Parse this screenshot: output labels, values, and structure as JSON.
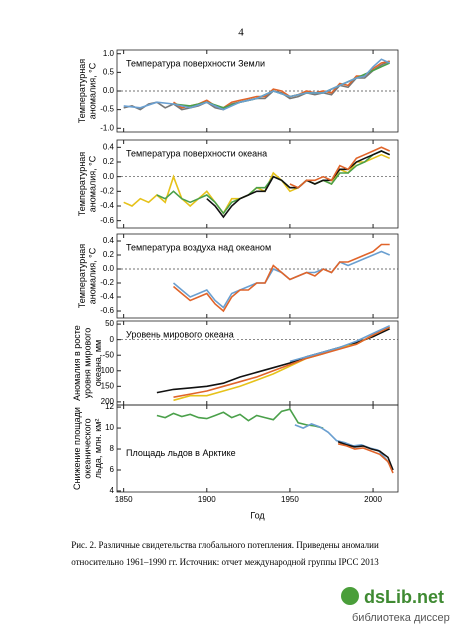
{
  "page_number": "4",
  "x_axis": {
    "xlim": [
      1846,
      2015
    ],
    "xticks": [
      1850,
      1900,
      1950,
      2000
    ],
    "xlabel": "Год"
  },
  "chart_data": [
    {
      "type": "line",
      "title": "Температура поверхности Земли",
      "ylabel": [
        "Температурная",
        "аномалия, °C"
      ],
      "ylim": [
        -1.1,
        1.1
      ],
      "yticks": [
        {
          "value": 1,
          "label": "1.0"
        },
        {
          "value": 0.5,
          "label": "0.5"
        },
        {
          "value": 0,
          "label": "0.0"
        },
        {
          "value": -0.5,
          "label": "-0.5"
        },
        {
          "value": -1,
          "label": "-1.0"
        }
      ],
      "zero_line": true,
      "series": [
        {
          "color": "#777777",
          "x": [
            1850,
            1855,
            1860,
            1865,
            1870,
            1875,
            1880,
            1885,
            1890,
            1895,
            1900,
            1905,
            1910,
            1915,
            1920,
            1925,
            1930,
            1935,
            1940,
            1945,
            1950,
            1955,
            1960,
            1965,
            1970,
            1975,
            1980,
            1985,
            1990,
            1995,
            2000,
            2005,
            2010
          ],
          "values": [
            -0.45,
            -0.4,
            -0.5,
            -0.35,
            -0.3,
            -0.45,
            -0.35,
            -0.5,
            -0.45,
            -0.4,
            -0.3,
            -0.45,
            -0.5,
            -0.35,
            -0.3,
            -0.25,
            -0.2,
            -0.2,
            0.0,
            -0.05,
            -0.2,
            -0.15,
            -0.05,
            -0.1,
            -0.05,
            -0.1,
            0.15,
            0.1,
            0.35,
            0.35,
            0.55,
            0.7,
            0.8
          ]
        },
        {
          "color": "#e0642a",
          "x": [
            1880,
            1885,
            1890,
            1895,
            1900,
            1905,
            1910,
            1915,
            1920,
            1925,
            1930,
            1935,
            1940,
            1945,
            1950,
            1955,
            1960,
            1965,
            1970,
            1975,
            1980,
            1985,
            1990,
            1995,
            2000,
            2005,
            2010
          ],
          "values": [
            -0.3,
            -0.45,
            -0.4,
            -0.35,
            -0.25,
            -0.4,
            -0.45,
            -0.3,
            -0.25,
            -0.2,
            -0.15,
            -0.15,
            0.05,
            0.0,
            -0.15,
            -0.1,
            0.0,
            -0.05,
            0.0,
            -0.05,
            0.2,
            0.15,
            0.4,
            0.4,
            0.6,
            0.75,
            0.8
          ]
        },
        {
          "color": "#4aa04a",
          "x": [
            1880,
            1890,
            1900,
            1910,
            1920,
            1930,
            1940,
            1950,
            1960,
            1970,
            1980,
            1990,
            2000,
            2010
          ],
          "values": [
            -0.35,
            -0.4,
            -0.3,
            -0.45,
            -0.3,
            -0.2,
            0.0,
            -0.15,
            -0.05,
            -0.05,
            0.15,
            0.35,
            0.55,
            0.75
          ]
        },
        {
          "color": "#6a9fd0",
          "x": [
            1850,
            1860,
            1870,
            1880,
            1890,
            1900,
            1910,
            1920,
            1930,
            1940,
            1950,
            1960,
            1970,
            1980,
            1990,
            1995,
            2000,
            2005,
            2010
          ],
          "values": [
            -0.4,
            -0.45,
            -0.3,
            -0.35,
            -0.45,
            -0.3,
            -0.5,
            -0.3,
            -0.2,
            0.0,
            -0.15,
            -0.05,
            -0.05,
            0.15,
            0.35,
            0.4,
            0.65,
            0.85,
            0.75
          ]
        }
      ]
    },
    {
      "type": "line",
      "title": "Температура поверхности океана",
      "ylabel": [
        "Температурная",
        "аномалия, °C"
      ],
      "ylim": [
        -0.7,
        0.5
      ],
      "yticks": [
        {
          "value": 0.4,
          "label": "0.4"
        },
        {
          "value": 0.2,
          "label": "0.2"
        },
        {
          "value": 0,
          "label": "0.0"
        },
        {
          "value": -0.2,
          "label": "-0.2"
        },
        {
          "value": -0.4,
          "label": "-0.4"
        },
        {
          "value": -0.6,
          "label": "-0.6"
        }
      ],
      "zero_line": true,
      "series": [
        {
          "color": "#e6c21a",
          "x": [
            1850,
            1855,
            1860,
            1865,
            1870,
            1875,
            1880,
            1885,
            1890,
            1895,
            1900,
            1905,
            1910,
            1915,
            1920,
            1925,
            1930,
            1935,
            1940,
            1945,
            1950,
            1955,
            1960,
            1965,
            1970,
            1975,
            1980,
            1985,
            1990,
            1995,
            2000,
            2005,
            2010
          ],
          "values": [
            -0.35,
            -0.4,
            -0.3,
            -0.35,
            -0.25,
            -0.35,
            0.0,
            -0.3,
            -0.4,
            -0.3,
            -0.2,
            -0.35,
            -0.5,
            -0.3,
            -0.3,
            -0.25,
            -0.15,
            -0.2,
            0.05,
            -0.05,
            -0.2,
            -0.15,
            -0.05,
            -0.1,
            -0.05,
            -0.1,
            0.1,
            0.05,
            0.2,
            0.2,
            0.25,
            0.3,
            0.25
          ]
        },
        {
          "color": "#4aa04a",
          "x": [
            1870,
            1875,
            1880,
            1885,
            1890,
            1895,
            1900,
            1905,
            1910,
            1915,
            1920,
            1925,
            1930,
            1935,
            1940,
            1945,
            1950,
            1955,
            1960,
            1965,
            1970,
            1975,
            1980,
            1985,
            1990,
            1995,
            2000,
            2005,
            2010
          ],
          "values": [
            -0.25,
            -0.3,
            -0.2,
            -0.3,
            -0.35,
            -0.3,
            -0.25,
            -0.35,
            -0.5,
            -0.35,
            -0.3,
            -0.25,
            -0.15,
            -0.15,
            0.0,
            -0.05,
            -0.15,
            -0.15,
            -0.05,
            -0.1,
            -0.05,
            -0.1,
            0.05,
            0.05,
            0.15,
            0.2,
            0.3,
            0.35,
            0.3
          ]
        },
        {
          "color": "#111111",
          "x": [
            1900,
            1905,
            1910,
            1915,
            1920,
            1925,
            1930,
            1935,
            1940,
            1945,
            1950,
            1955,
            1960,
            1965,
            1970,
            1975,
            1980,
            1985,
            1990,
            1995,
            2000,
            2005,
            2010
          ],
          "values": [
            -0.3,
            -0.4,
            -0.55,
            -0.4,
            -0.3,
            -0.25,
            -0.2,
            -0.2,
            0.0,
            -0.05,
            -0.15,
            -0.15,
            -0.05,
            -0.1,
            -0.05,
            -0.05,
            0.1,
            0.1,
            0.2,
            0.25,
            0.3,
            0.35,
            0.3
          ]
        },
        {
          "color": "#e0642a",
          "x": [
            1950,
            1955,
            1960,
            1965,
            1970,
            1975,
            1980,
            1985,
            1990,
            1995,
            2000,
            2005,
            2010
          ],
          "values": [
            -0.1,
            -0.15,
            -0.05,
            -0.05,
            0.0,
            -0.05,
            0.15,
            0.1,
            0.25,
            0.3,
            0.35,
            0.4,
            0.35
          ]
        }
      ]
    },
    {
      "type": "line",
      "title": "Температура воздуха над океаном",
      "ylabel": [
        "Температурная",
        "аномалия, °C"
      ],
      "ylim": [
        -0.7,
        0.5
      ],
      "yticks": [
        {
          "value": 0.4,
          "label": "0.4"
        },
        {
          "value": 0.2,
          "label": "0.2"
        },
        {
          "value": 0,
          "label": "0.0"
        },
        {
          "value": -0.2,
          "label": "-0.2"
        },
        {
          "value": -0.4,
          "label": "-0.4"
        },
        {
          "value": -0.6,
          "label": "-0.6"
        }
      ],
      "zero_line": true,
      "series": [
        {
          "color": "#6a9fd0",
          "x": [
            1880,
            1885,
            1890,
            1895,
            1900,
            1905,
            1910,
            1915,
            1920,
            1925,
            1930,
            1935,
            1940,
            1945,
            1950,
            1955,
            1960,
            1965,
            1970,
            1975,
            1980,
            1985,
            1990,
            1995,
            2000,
            2005,
            2010
          ],
          "values": [
            -0.2,
            -0.3,
            -0.4,
            -0.35,
            -0.3,
            -0.45,
            -0.55,
            -0.35,
            -0.3,
            -0.25,
            -0.2,
            -0.2,
            0.0,
            -0.05,
            -0.15,
            -0.1,
            -0.05,
            -0.05,
            0.0,
            -0.05,
            0.1,
            0.05,
            0.1,
            0.15,
            0.2,
            0.25,
            0.2
          ]
        },
        {
          "color": "#e0642a",
          "x": [
            1880,
            1885,
            1890,
            1895,
            1900,
            1905,
            1910,
            1915,
            1920,
            1925,
            1930,
            1935,
            1940,
            1945,
            1950,
            1955,
            1960,
            1965,
            1970,
            1975,
            1980,
            1985,
            1990,
            1995,
            2000,
            2005,
            2010
          ],
          "values": [
            -0.25,
            -0.35,
            -0.45,
            -0.4,
            -0.35,
            -0.5,
            -0.6,
            -0.4,
            -0.3,
            -0.3,
            -0.2,
            -0.2,
            0.05,
            -0.05,
            -0.15,
            -0.1,
            -0.05,
            -0.1,
            0.0,
            -0.05,
            0.1,
            0.1,
            0.15,
            0.2,
            0.25,
            0.35,
            0.35
          ]
        }
      ]
    },
    {
      "type": "line",
      "title": "Уровень мирового океана",
      "ylabel": [
        "Аномалия в росте",
        "уровня мирового",
        "океана, мм"
      ],
      "ylim": [
        -210,
        60
      ],
      "yticks": [
        50,
        0,
        -50,
        {
          "value": -100,
          "label": "100"
        },
        {
          "value": -150,
          "label": "150"
        },
        {
          "value": -200,
          "label": "200"
        }
      ],
      "zero_line": true,
      "series": [
        {
          "color": "#111111",
          "x": [
            1870,
            1880,
            1890,
            1900,
            1910,
            1920,
            1930,
            1940,
            1950,
            1960,
            1970,
            1980,
            1990,
            2000,
            2010
          ],
          "values": [
            -170,
            -160,
            -155,
            -150,
            -140,
            -120,
            -105,
            -90,
            -75,
            -55,
            -40,
            -25,
            -10,
            10,
            35
          ]
        },
        {
          "color": "#e6c21a",
          "x": [
            1880,
            1890,
            1900,
            1910,
            1920,
            1930,
            1940,
            1950,
            1960,
            1970,
            1980,
            1990,
            2000,
            2010
          ],
          "values": [
            -195,
            -180,
            -180,
            -165,
            -150,
            -130,
            -110,
            -85,
            -60,
            -45,
            -25,
            -15,
            15,
            40
          ]
        },
        {
          "color": "#e0642a",
          "x": [
            1880,
            1890,
            1900,
            1910,
            1920,
            1930,
            1940,
            1950,
            1960,
            1970,
            1980,
            1990,
            2000,
            2010
          ],
          "values": [
            -185,
            -175,
            -165,
            -150,
            -135,
            -120,
            -100,
            -80,
            -60,
            -45,
            -30,
            -15,
            15,
            40
          ]
        },
        {
          "color": "#6a9fd0",
          "x": [
            1950,
            1960,
            1970,
            1980,
            1990,
            2000,
            2010
          ],
          "values": [
            -70,
            -55,
            -40,
            -25,
            -5,
            20,
            45
          ]
        }
      ]
    },
    {
      "type": "line",
      "title": "Площадь льдов в Арктике",
      "ylabel": [
        "Снижение площади",
        "океанического",
        "льда, млн. км²"
      ],
      "ylim": [
        3.9,
        12.2
      ],
      "yticks": [
        12,
        10,
        8,
        6,
        4
      ],
      "zero_line": false,
      "series": [
        {
          "color": "#4aa04a",
          "x": [
            1870,
            1875,
            1880,
            1885,
            1890,
            1895,
            1900,
            1905,
            1910,
            1915,
            1920,
            1925,
            1930,
            1935,
            1940,
            1945,
            1950,
            1955,
            1960,
            1965,
            1970
          ],
          "values": [
            11.2,
            11.0,
            11.4,
            11.1,
            11.3,
            11.0,
            10.9,
            11.2,
            11.5,
            11.0,
            11.3,
            10.7,
            11.2,
            11.0,
            10.8,
            11.6,
            11.8,
            10.5,
            10.3,
            10.2,
            10.0
          ]
        },
        {
          "color": "#6a9fd0",
          "x": [
            1953,
            1958,
            1963,
            1968,
            1973,
            1978,
            1983,
            1988,
            1993,
            1998,
            2003,
            2008,
            2012
          ],
          "values": [
            10.3,
            10.0,
            10.4,
            10.1,
            9.6,
            8.8,
            8.6,
            8.3,
            8.4,
            8.1,
            7.9,
            7.0,
            6.0
          ]
        },
        {
          "color": "#111111",
          "x": [
            1979,
            1984,
            1989,
            1994,
            1999,
            2004,
            2009,
            2012
          ],
          "values": [
            8.7,
            8.4,
            8.2,
            8.3,
            8.0,
            7.8,
            7.2,
            6.0
          ]
        },
        {
          "color": "#e0642a",
          "x": [
            1979,
            1984,
            1989,
            1994,
            1999,
            2004,
            2009,
            2012
          ],
          "values": [
            8.5,
            8.3,
            8.0,
            8.1,
            7.8,
            7.5,
            6.8,
            5.7
          ]
        }
      ]
    }
  ],
  "caption": [
    "Рис. 2. Различные свидетельства глобального потепления. Приведены аномалии",
    "относительно 1961–1990 гг. Источник: отчет международной группы IPCC 2013"
  ],
  "watermark": {
    "logo": "dsLib.net",
    "subtitle": "библиотека диссертаций"
  }
}
